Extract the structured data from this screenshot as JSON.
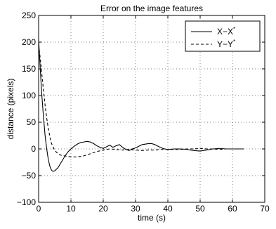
{
  "chart_data": {
    "type": "line",
    "title": "Error on the image features",
    "xlabel": "time (s)",
    "ylabel": "distance (pixels)",
    "xlim": [
      0,
      70
    ],
    "ylim": [
      -100,
      250
    ],
    "xticks": [
      0,
      10,
      20,
      30,
      40,
      50,
      60,
      70
    ],
    "yticks": [
      -100,
      -50,
      0,
      50,
      100,
      150,
      200,
      250
    ],
    "xtick_labels": [
      "0",
      "10",
      "20",
      "30",
      "40",
      "50",
      "60",
      "70"
    ],
    "ytick_labels": [
      "−100",
      "−50",
      "0",
      "50",
      "100",
      "150",
      "200",
      "250"
    ],
    "grid": true,
    "legend_position": "top-right",
    "series": [
      {
        "name": "X−X",
        "superscript": "*",
        "style": "solid",
        "x": [
          0,
          0.5,
          1,
          1.5,
          2,
          2.5,
          3,
          3.5,
          4,
          4.5,
          5,
          6,
          7,
          8,
          9,
          10,
          11,
          12,
          13,
          14,
          15,
          16,
          17,
          18,
          19,
          20,
          21,
          22,
          23,
          24,
          25,
          26,
          27,
          28,
          29,
          30,
          31,
          32,
          33,
          34,
          35,
          36,
          37,
          38,
          39,
          40,
          42,
          44,
          46,
          48,
          50,
          52,
          54,
          56,
          58,
          60,
          62,
          63.5
        ],
        "y": [
          205,
          150,
          100,
          60,
          25,
          0,
          -20,
          -33,
          -40,
          -42,
          -41,
          -35,
          -25,
          -15,
          -6,
          0,
          5,
          9,
          12,
          13,
          14,
          13,
          10,
          6,
          3,
          1,
          4,
          7,
          3,
          6,
          8,
          3,
          -1,
          -3,
          0,
          2,
          5,
          8,
          9,
          10,
          10,
          8,
          5,
          2,
          0,
          -1,
          0,
          0,
          -1,
          -3,
          -4,
          -2,
          0,
          1,
          0,
          0,
          0,
          0
        ]
      },
      {
        "name": "Y−Y",
        "superscript": "*",
        "style": "dashed",
        "x": [
          0,
          0.5,
          1,
          1.5,
          2,
          2.5,
          3,
          3.5,
          4,
          5,
          6,
          7,
          8,
          9,
          10,
          12,
          14,
          16,
          18,
          20,
          22,
          24,
          26,
          28,
          30,
          32,
          34,
          36,
          38,
          40,
          42,
          44,
          46,
          48,
          50,
          52,
          54,
          56,
          58,
          60,
          62,
          63.5
        ],
        "y": [
          195,
          170,
          140,
          110,
          82,
          58,
          38,
          22,
          10,
          -3,
          -9,
          -12,
          -13,
          -14,
          -15,
          -15,
          -13,
          -9,
          -5,
          -2,
          0,
          -1,
          -2,
          -1,
          -2,
          -3,
          -2,
          -2,
          -1,
          -1,
          -1,
          -1,
          0,
          0,
          1,
          0,
          0,
          -1,
          0,
          0,
          0,
          0
        ]
      }
    ]
  }
}
